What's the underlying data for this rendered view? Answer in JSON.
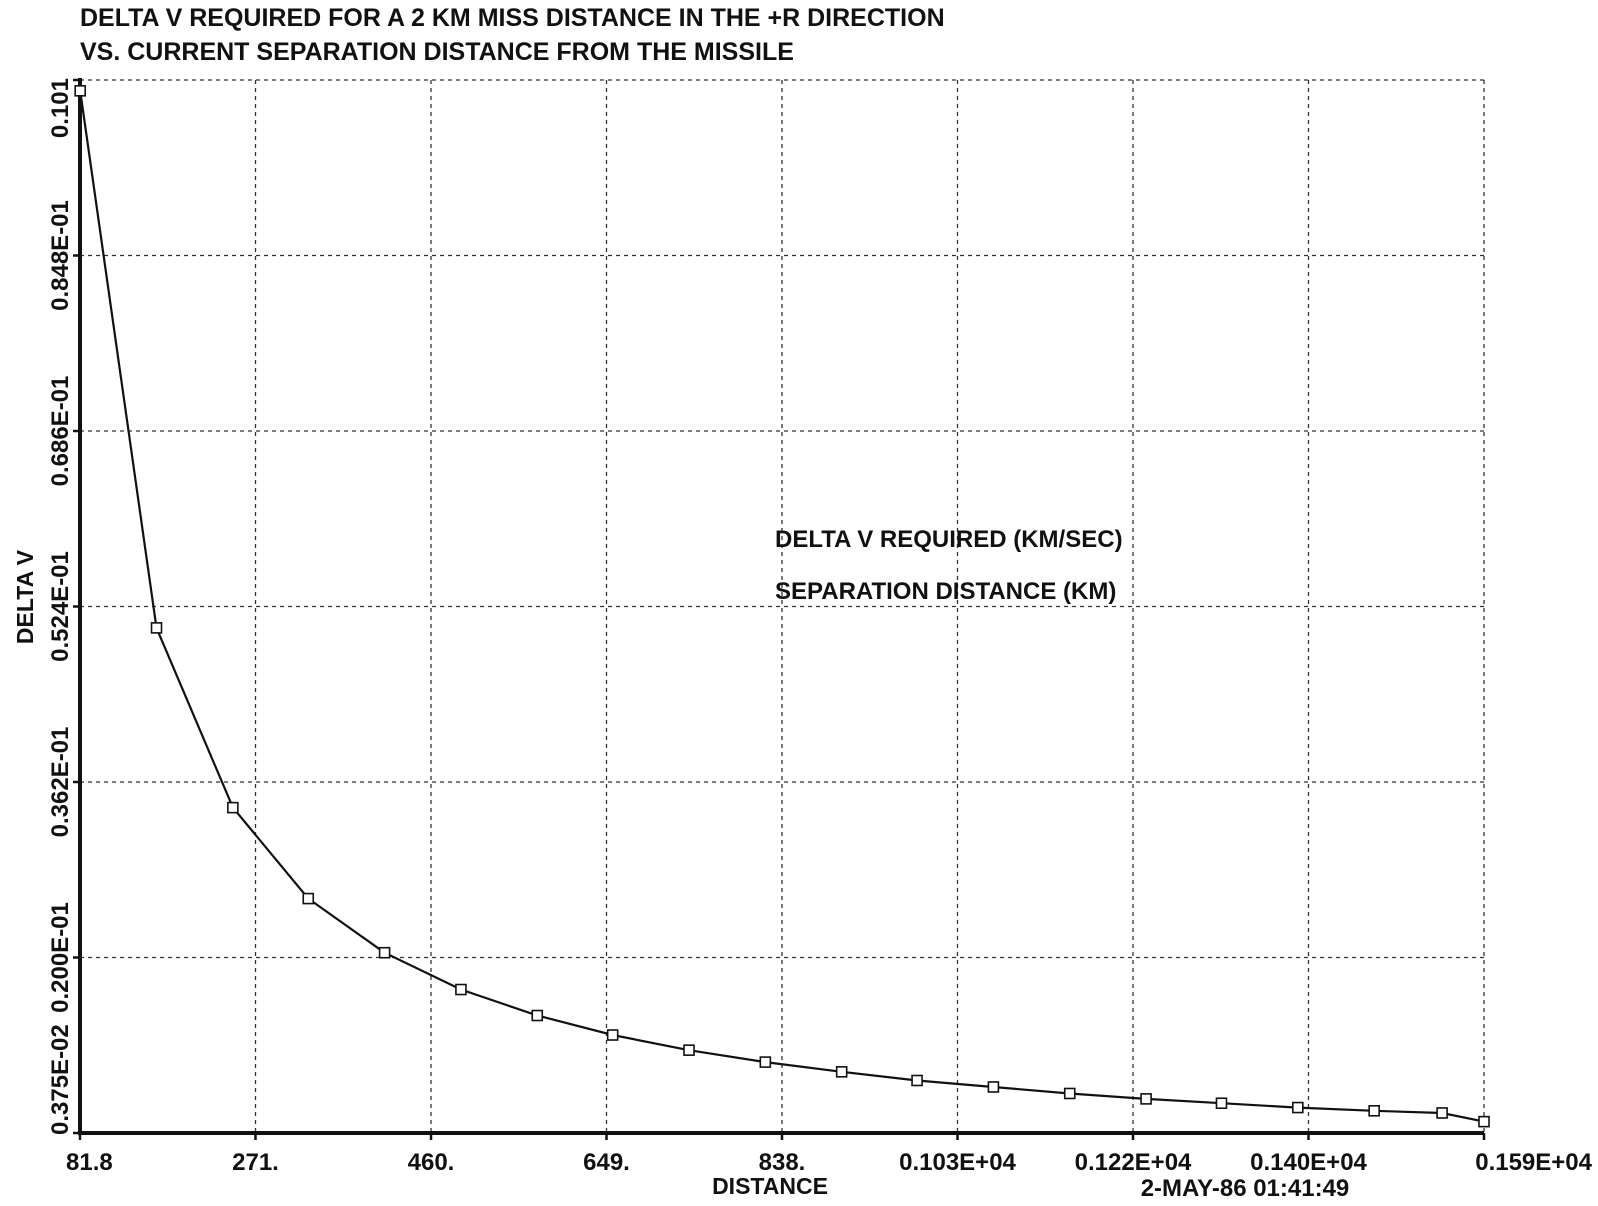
{
  "chart_data": {
    "type": "line",
    "title": "DELTA V REQUIRED FOR A 2 KM MISS DISTANCE IN THE +R DIRECTION",
    "subtitle": "VS. CURRENT SEPARATION DISTANCE FROM THE MISSILE",
    "xlabel": "DISTANCE",
    "ylabel": "DELTA V",
    "xlim": [
      81.8,
      1590
    ],
    "ylim": [
      0.00375,
      0.101
    ],
    "x_tick_labels": [
      "81.8",
      "271.",
      "460.",
      "649.",
      "838.",
      "0.103E+04",
      "0.122E+04",
      "0.140E+04",
      "0.159E+04"
    ],
    "y_tick_labels": [
      "0.375E-02",
      "0.200E-01",
      "0.362E-01",
      "0.524E-01",
      "0.686E-01",
      "0.848E-01",
      "0.101"
    ],
    "grid": true,
    "legend_lines": [
      "DELTA V REQUIRED    (KM/SEC)",
      "SEPARATION DISTANCE     (KM)"
    ],
    "timestamp": "2-MAY-86  01:41:49",
    "series": [
      {
        "x": [
          82,
          164,
          246,
          327,
          409,
          491,
          573,
          654,
          736,
          818,
          900,
          981,
          1063,
          1145,
          1227,
          1308,
          1390,
          1472,
          1545,
          1590
        ],
        "values": [
          0.1,
          0.0504,
          0.0338,
          0.0254,
          0.0204,
          0.017,
          0.0146,
          0.0128,
          0.0114,
          0.0103,
          0.0094,
          0.0086,
          0.008,
          0.0074,
          0.0069,
          0.0065,
          0.0061,
          0.0058,
          0.0056,
          0.0048
        ]
      }
    ]
  }
}
